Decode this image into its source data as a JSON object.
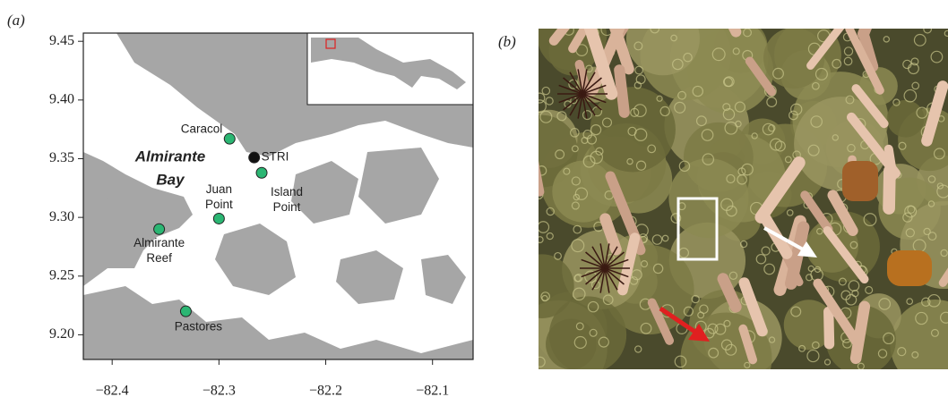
{
  "panels": {
    "a": "(a)",
    "b": "(b)"
  },
  "map": {
    "xlim": [
      -82.427,
      -82.062
    ],
    "ylim": [
      9.179,
      9.457
    ],
    "xticks": [
      {
        "value": -82.4,
        "label": "−82.4"
      },
      {
        "value": -82.3,
        "label": "−82.3"
      },
      {
        "value": -82.2,
        "label": "−82.2"
      },
      {
        "value": -82.1,
        "label": "−82.1"
      }
    ],
    "yticks": [
      {
        "value": 9.2,
        "label": "9.20"
      },
      9.25,
      {
        "value": 9.3,
        "label": "9.30"
      },
      9.35,
      {
        "value": 9.4,
        "label": "9.40"
      },
      9.45
    ],
    "bay_label": [
      "Almirante",
      "Bay"
    ],
    "sites": [
      {
        "label": [
          "Caracol"
        ],
        "lon": -82.29,
        "lat": 9.367,
        "color": "#2bb673"
      },
      {
        "label": [
          "STRI"
        ],
        "lon": -82.267,
        "lat": 9.351,
        "color": "#111111"
      },
      {
        "label": [
          "Island",
          "Point"
        ],
        "lon": -82.26,
        "lat": 9.338,
        "color": "#2bb673"
      },
      {
        "label": [
          "Juan",
          "Point"
        ],
        "lon": -82.3,
        "lat": 9.299,
        "color": "#2bb673"
      },
      {
        "label": [
          "Almirante",
          "Reef"
        ],
        "lon": -82.356,
        "lat": 9.29,
        "color": "#2bb673"
      },
      {
        "label": [
          "Pastores"
        ],
        "lon": -82.331,
        "lat": 9.22,
        "color": "#2bb673"
      }
    ]
  }
}
